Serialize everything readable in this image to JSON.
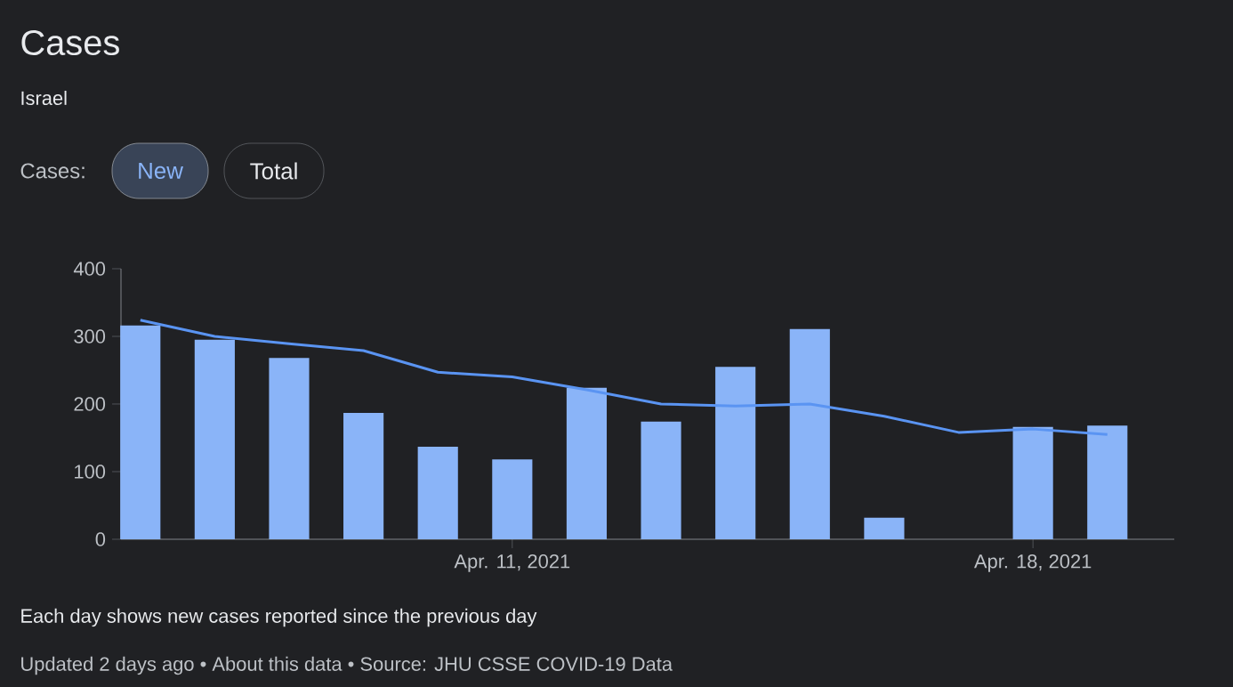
{
  "chart_data": {
    "type": "bar",
    "title": "Cases",
    "subtitle": "Israel",
    "annotations": [
      "Cases:",
      "New",
      "Total",
      "Each day shows new cases reported since the previous day",
      "Updated 2 days ago • About this data • Source: JHU CSSE COVID-19 Data"
    ],
    "categories": [
      null,
      null,
      null,
      null,
      null,
      "Apr. 11, 2021",
      null,
      null,
      null,
      null,
      null,
      null,
      "Apr. 18, 2021",
      null
    ],
    "series": [
      {
        "color": "#8ab4f8",
        "values": [
          316,
          295,
          268,
          187,
          137,
          118,
          224,
          174,
          255,
          311,
          32,
          null,
          166,
          168
        ]
      },
      {
        "type": "line",
        "color": "#5a94f2",
        "values": [
          324,
          300,
          289,
          279,
          247,
          240,
          221,
          200,
          197,
          200,
          182,
          158,
          163,
          155
        ]
      }
    ],
    "ylim": [
      0,
      400
    ],
    "yticks": [
      0,
      100,
      200,
      300,
      400
    ]
  }
}
